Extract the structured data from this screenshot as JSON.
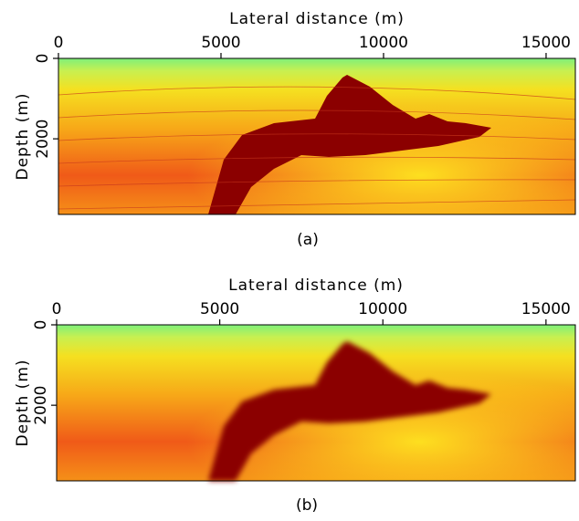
{
  "chart_data": [
    {
      "type": "image",
      "x_label": "Lateral distance (m)",
      "y_label": "Depth (m)",
      "caption": "(a)",
      "xlim": [
        0,
        15900
      ],
      "ylim": [
        0,
        3880
      ],
      "xticks": [
        0,
        5000,
        10000,
        15000
      ],
      "yticks": [
        0,
        2000
      ]
    },
    {
      "type": "image",
      "x_label": "Lateral distance (m)",
      "y_label": "Depth (m)",
      "caption": "(b)",
      "xlim": [
        0,
        15900
      ],
      "ylim": [
        0,
        3880
      ],
      "xticks": [
        0,
        5000,
        10000,
        15000
      ],
      "yticks": [
        0,
        2000
      ]
    }
  ]
}
